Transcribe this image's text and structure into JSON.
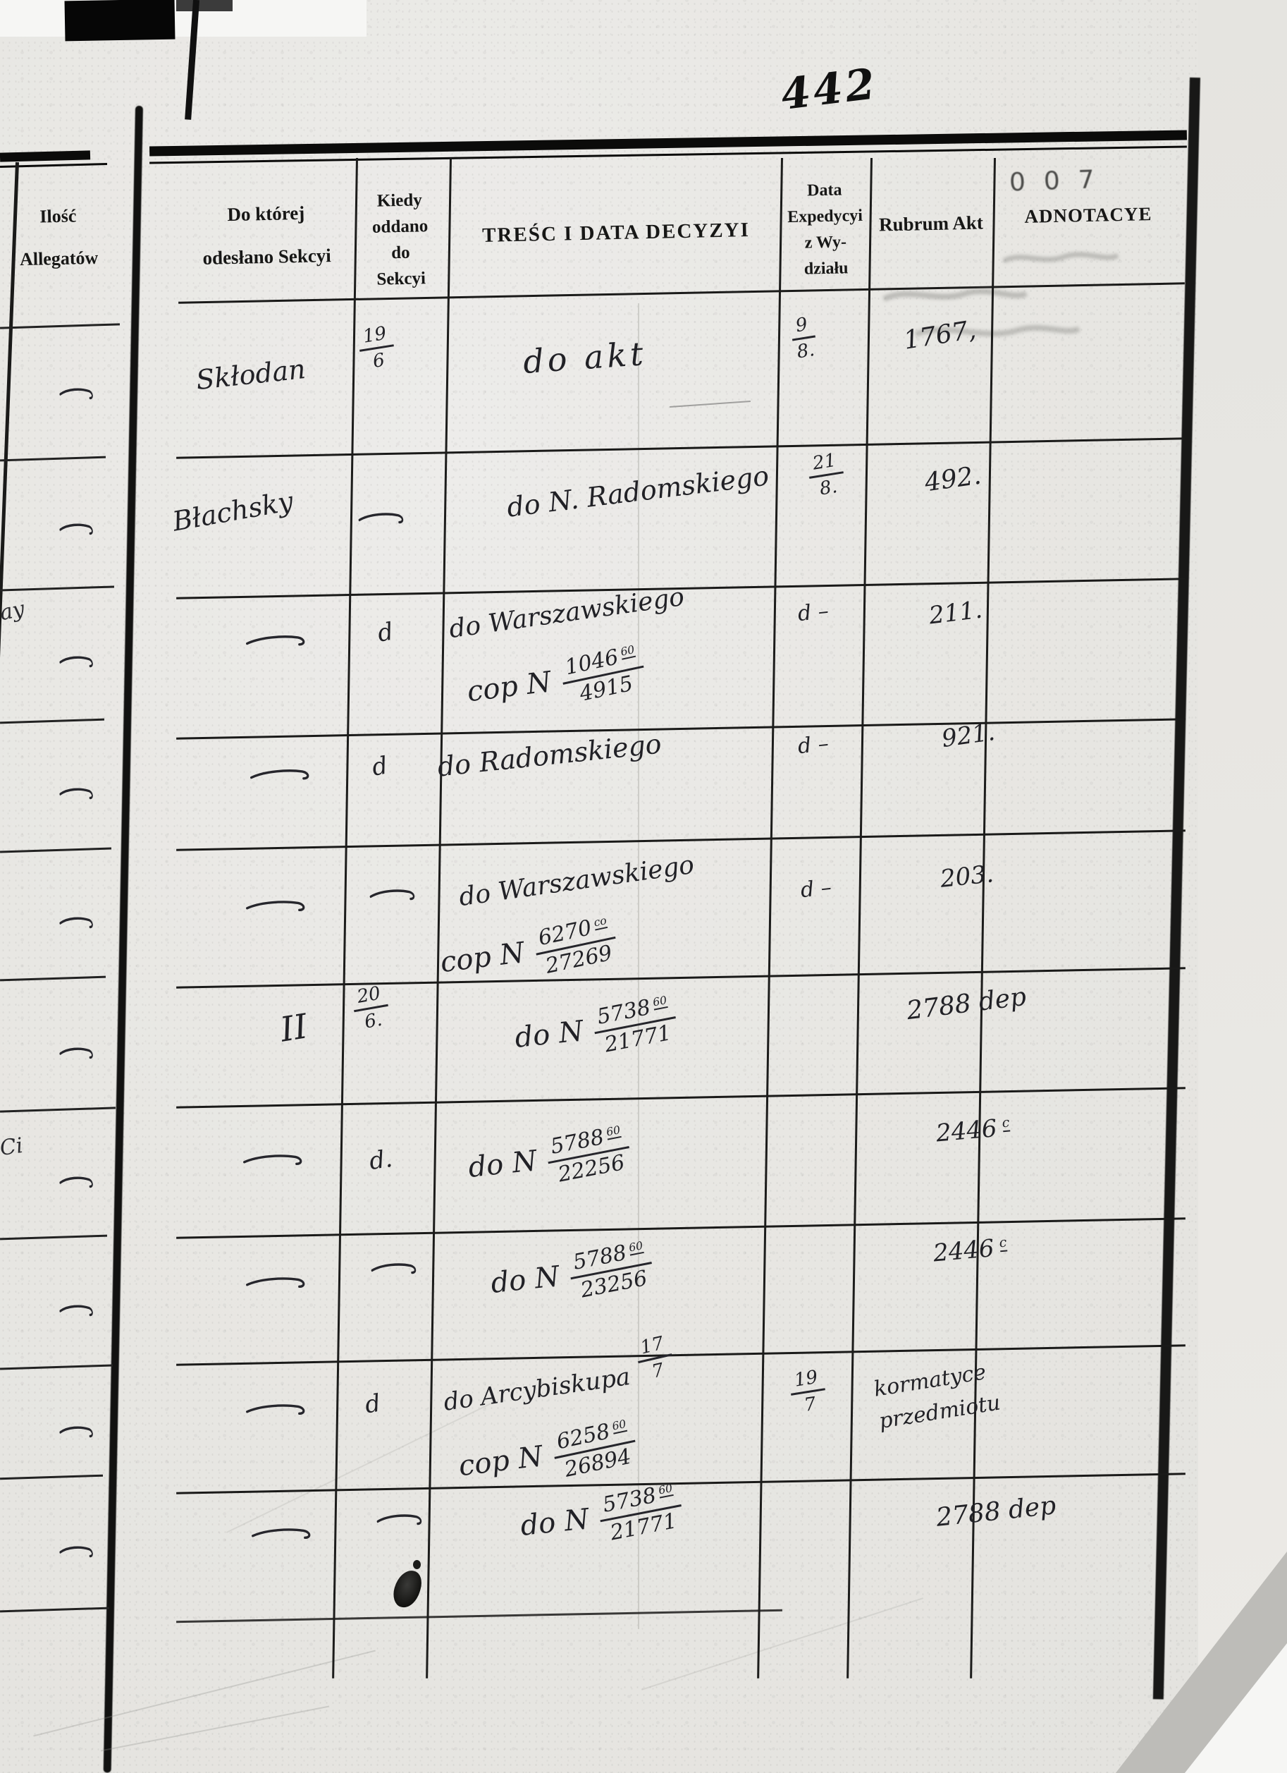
{
  "page": {
    "page_number": "442",
    "stamp": "007"
  },
  "left_page": {
    "header_lines": [
      "Ilość",
      "Allegatów"
    ],
    "margin_marks": [
      "ay",
      "Ci"
    ]
  },
  "table": {
    "columns": [
      {
        "id": "sekcya",
        "header_lines": [
          "Do której",
          "odesłano Sekcyi"
        ]
      },
      {
        "id": "kiedy",
        "header_lines": [
          "Kiedy",
          "oddano",
          "do",
          "Sekcyi"
        ]
      },
      {
        "id": "tresc",
        "header_lines": [
          "TREŚC I DATA DECYZYI"
        ]
      },
      {
        "id": "expedycya",
        "header_lines": [
          "Data",
          "Expedycyi",
          "z Wy-",
          "działu"
        ]
      },
      {
        "id": "rubrum",
        "header_lines": [
          "Rubrum Akt"
        ]
      },
      {
        "id": "adnotacye",
        "header_lines": [
          "ADNOTACYE"
        ]
      }
    ],
    "rows": [
      {
        "sekcya": {
          "text": "Skłodan"
        },
        "kiedy": {
          "frac": {
            "num": "19",
            "den": "6"
          }
        },
        "tresc": [
          {
            "text": "do akt"
          }
        ],
        "expedycya": {
          "frac": {
            "num": "9",
            "den": "8."
          }
        },
        "rubrum": {
          "text": "1767,"
        }
      },
      {
        "sekcya": {
          "text": "Błachsky"
        },
        "kiedy": {
          "dash": true
        },
        "tresc": [
          {
            "text": "do N. Radomskiego"
          }
        ],
        "expedycya": {
          "frac": {
            "num": "21",
            "den": "8."
          }
        },
        "rubrum": {
          "text": "492."
        }
      },
      {
        "sekcya": {
          "dash": true
        },
        "kiedy": {
          "text": "d"
        },
        "tresc": [
          {
            "text": "do Warszawskiego"
          },
          {
            "pre": "cop N",
            "frac": {
              "num": "1046",
              "sup": "60",
              "den": "4915"
            }
          }
        ],
        "expedycya": {
          "text": "d –"
        },
        "rubrum": {
          "text": "211."
        }
      },
      {
        "sekcya": {
          "dash": true
        },
        "kiedy": {
          "text": "d"
        },
        "tresc": [
          {
            "text": "do Radomskiego"
          }
        ],
        "expedycya": {
          "text": "d –"
        },
        "rubrum": {
          "text": "921."
        }
      },
      {
        "sekcya": {
          "dash": true
        },
        "kiedy": {
          "dash": true
        },
        "tresc": [
          {
            "text": "do Warszawskiego"
          },
          {
            "pre": "cop N",
            "frac": {
              "num": "6270",
              "sup": "co",
              "den": "27269"
            }
          }
        ],
        "expedycya": {
          "text": "d –"
        },
        "rubrum": {
          "text": "203."
        }
      },
      {
        "sekcya": {
          "text": "II"
        },
        "kiedy": {
          "frac": {
            "num": "20",
            "den": "6."
          }
        },
        "tresc": [
          {
            "pre": "do N",
            "frac": {
              "num": "5738",
              "sup": "60",
              "den": "21771"
            }
          }
        ],
        "expedycya": {},
        "rubrum": {
          "text": "2788 dep"
        }
      },
      {
        "sekcya": {
          "dash": true
        },
        "kiedy": {
          "text": "d."
        },
        "tresc": [
          {
            "pre": "do N",
            "frac": {
              "num": "5788",
              "sup": "60",
              "den": "22256"
            }
          }
        ],
        "expedycya": {},
        "rubrum": {
          "text": "2446",
          "sup": "c"
        }
      },
      {
        "sekcya": {
          "dash": true
        },
        "kiedy": {
          "dash": true
        },
        "tresc": [
          {
            "pre": "do N",
            "frac": {
              "num": "5788",
              "sup": "60",
              "den": "23256"
            }
          }
        ],
        "expedycya": {},
        "rubrum": {
          "text": "2446",
          "sup": "c"
        }
      },
      {
        "sekcya": {
          "dash": true
        },
        "kiedy": {
          "text": "d"
        },
        "tresc": [
          {
            "text": "do Arcybiskupa",
            "fracAfter": {
              "num": "17",
              "den": "7"
            }
          },
          {
            "pre": "cop N",
            "frac": {
              "num": "6258",
              "sup": "60",
              "den": "26894"
            }
          }
        ],
        "expedycya": {
          "frac": {
            "num": "19",
            "den": "7"
          }
        },
        "rubrum": {
          "lines": [
            "kormatyce",
            "przedmiotu"
          ]
        }
      },
      {
        "sekcya": {
          "dash": true
        },
        "kiedy": {
          "dash": true
        },
        "tresc": [
          {
            "pre": "do N",
            "frac": {
              "num": "5738",
              "sup": "60",
              "den": "21771"
            }
          }
        ],
        "expedycya": {},
        "rubrum": {
          "text": "2788 dep"
        }
      }
    ]
  }
}
